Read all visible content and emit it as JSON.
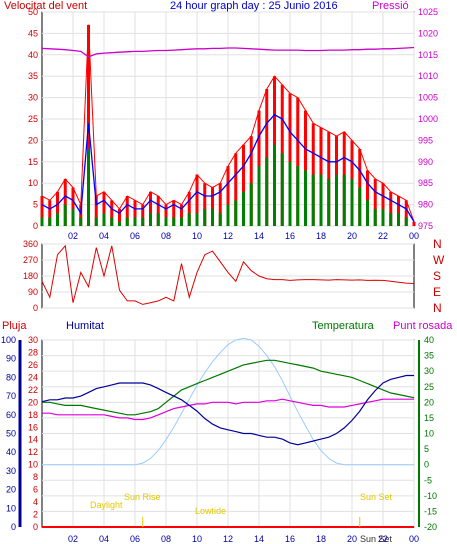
{
  "header": {
    "wind_label": "Velocitat del vent",
    "title": "24 hour graph day : 25 Junio 2016",
    "pressure_label": "Pressió"
  },
  "middle_labels": {
    "rain": "Pluja",
    "humidity": "Humitat",
    "temperature": "Temperatura",
    "dewpoint": "Punt rosada"
  },
  "compass": [
    "N",
    "W",
    "S",
    "E",
    "N"
  ],
  "sun_labels": {
    "twilight_dawn": "Daylight",
    "sunrise": "Sun Rise",
    "lowtide": "Lowtide",
    "sunset": "Sun Set",
    "sunset_extra": "Sun Set"
  },
  "colors": {
    "wind_gust": "#ff0000",
    "wind_avg": "#0000ff",
    "wind_low": "#008000",
    "pressure": "#cc00cc",
    "direction": "#dd0000",
    "humidity": "#000099",
    "temperature": "#007700",
    "dewpoint": "#dd00dd",
    "solar": "#99ccff",
    "rain": "#ff0000"
  },
  "chart_data": [
    {
      "type": "line",
      "name": "wind_pressure",
      "x_ticks": [
        "02",
        "04",
        "06",
        "08",
        "10",
        "12",
        "14",
        "16",
        "18",
        "20",
        "22",
        "00"
      ],
      "y_left_ticks": [
        0,
        5,
        10,
        15,
        20,
        25,
        30,
        35,
        40,
        45,
        50
      ],
      "y_right_ticks": [
        975,
        980,
        985,
        990,
        995,
        1000,
        1005,
        1010,
        1015,
        1020,
        1025
      ],
      "ylim_left": [
        0,
        50
      ],
      "ylim_right": [
        975,
        1025
      ],
      "x_hours": [
        0,
        0.5,
        1,
        1.5,
        2,
        2.5,
        3,
        3.5,
        4,
        4.5,
        5,
        5.5,
        6,
        6.5,
        7,
        7.5,
        8,
        8.5,
        9,
        9.5,
        10,
        10.5,
        11,
        11.5,
        12,
        12.5,
        13,
        13.5,
        14,
        14.5,
        15,
        15.5,
        16,
        16.5,
        17,
        17.5,
        18,
        18.5,
        19,
        19.5,
        20,
        20.5,
        21,
        21.5,
        22,
        22.5,
        23,
        23.5,
        24
      ],
      "series": [
        {
          "key": "gust",
          "values": [
            7,
            6,
            8,
            11,
            9,
            5,
            47,
            7,
            8,
            6,
            4,
            7,
            6,
            5,
            8,
            7,
            5,
            6,
            5,
            8,
            12,
            10,
            9,
            10,
            14,
            17,
            19,
            21,
            27,
            32,
            35,
            33,
            31,
            30,
            27,
            24,
            23,
            22,
            21,
            22,
            20,
            18,
            13,
            11,
            10,
            8,
            7,
            6,
            1
          ]
        },
        {
          "key": "avg",
          "values": [
            5,
            4,
            5,
            7,
            6,
            3,
            24,
            5,
            6,
            4,
            3,
            5,
            4,
            4,
            6,
            5,
            4,
            5,
            4,
            6,
            8,
            7,
            7,
            8,
            10,
            12,
            14,
            17,
            21,
            24,
            26,
            25,
            22,
            20,
            18,
            17,
            16,
            15,
            15,
            16,
            15,
            13,
            10,
            8,
            7,
            6,
            5,
            4,
            1
          ]
        },
        {
          "key": "low",
          "values": [
            2,
            2,
            3,
            5,
            4,
            2,
            18,
            2,
            3,
            2,
            1,
            2,
            2,
            2,
            3,
            3,
            2,
            2,
            2,
            3,
            3,
            4,
            4,
            3,
            5,
            6,
            8,
            10,
            14,
            16,
            19,
            17,
            15,
            14,
            13,
            12,
            12,
            11,
            12,
            12,
            11,
            9,
            6,
            4,
            4,
            3,
            3,
            2,
            0
          ]
        },
        {
          "key": "pressure",
          "values": [
            1016.5,
            1016.4,
            1016.3,
            1016.2,
            1016.0,
            1015.8,
            1014.5,
            1015.2,
            1015.4,
            1015.5,
            1015.6,
            1015.7,
            1015.8,
            1015.8,
            1015.9,
            1016.0,
            1016.0,
            1016.1,
            1016.2,
            1016.3,
            1016.4,
            1016.4,
            1016.5,
            1016.5,
            1016.6,
            1016.6,
            1016.5,
            1016.4,
            1016.3,
            1016.2,
            1016.1,
            1016.1,
            1016.1,
            1016.1,
            1016.0,
            1016.0,
            1016.0,
            1016.1,
            1016.1,
            1016.1,
            1016.2,
            1016.2,
            1016.3,
            1016.3,
            1016.4,
            1016.4,
            1016.5,
            1016.6,
            1016.7
          ]
        }
      ]
    },
    {
      "type": "scatter",
      "name": "wind_direction",
      "y_ticks": [
        0,
        90,
        180,
        270,
        360
      ],
      "ylim": [
        0,
        360
      ],
      "x_hours": [
        0,
        0.5,
        1,
        1.5,
        2,
        2.5,
        3,
        3.5,
        4,
        4.5,
        5,
        5.5,
        6,
        6.5,
        7,
        7.5,
        8,
        8.5,
        9,
        9.5,
        10,
        10.5,
        11,
        11.5,
        12,
        12.5,
        13,
        13.5,
        14,
        14.5,
        15,
        15.5,
        16,
        16.5,
        17,
        17.5,
        18,
        18.5,
        19,
        19.5,
        20,
        20.5,
        21,
        21.5,
        22,
        22.5,
        23,
        23.5,
        24
      ],
      "values": [
        150,
        60,
        300,
        350,
        30,
        200,
        120,
        340,
        180,
        350,
        100,
        40,
        40,
        20,
        30,
        40,
        60,
        40,
        250,
        60,
        200,
        300,
        320,
        260,
        200,
        150,
        260,
        210,
        180,
        165,
        160,
        160,
        155,
        158,
        160,
        160,
        158,
        157,
        160,
        158,
        157,
        158,
        155,
        156,
        155,
        150,
        145,
        140,
        138
      ]
    },
    {
      "type": "line",
      "name": "temp_humidity",
      "y_hum_ticks": [
        0,
        10,
        20,
        30,
        40,
        50,
        60,
        70,
        80,
        90,
        100
      ],
      "y_rain_ticks": [
        0,
        2,
        4,
        6,
        8,
        10,
        12,
        14,
        16,
        18,
        20,
        22,
        24,
        26,
        28,
        30
      ],
      "y_temp_ticks": [
        -20,
        -15,
        -10,
        -5,
        0,
        5,
        10,
        15,
        20,
        25,
        30,
        35,
        40
      ],
      "ylim_humidity": [
        0,
        100
      ],
      "ylim_temperature": [
        -20,
        40
      ],
      "x_hours": [
        0,
        0.5,
        1,
        1.5,
        2,
        2.5,
        3,
        3.5,
        4,
        4.5,
        5,
        5.5,
        6,
        6.5,
        7,
        7.5,
        8,
        8.5,
        9,
        9.5,
        10,
        10.5,
        11,
        11.5,
        12,
        12.5,
        13,
        13.5,
        14,
        14.5,
        15,
        15.5,
        16,
        16.5,
        17,
        17.5,
        18,
        18.5,
        19,
        19.5,
        20,
        20.5,
        21,
        21.5,
        22,
        22.5,
        23,
        23.5,
        24
      ],
      "series": [
        {
          "key": "humidity",
          "values": [
            67,
            68,
            68,
            69,
            69,
            70,
            72,
            74,
            75,
            76,
            77,
            77,
            77,
            77,
            76,
            74,
            72,
            70,
            68,
            65,
            62,
            58,
            55,
            53,
            52,
            51,
            50,
            50,
            49,
            48,
            48,
            47,
            45,
            44,
            45,
            46,
            47,
            48,
            50,
            53,
            57,
            62,
            68,
            73,
            77,
            79,
            80,
            81,
            81
          ]
        },
        {
          "key": "temperature",
          "values": [
            20,
            20,
            19.5,
            19,
            19,
            19,
            18.5,
            18,
            17.5,
            17,
            16.5,
            16,
            16,
            16.5,
            17,
            18,
            20,
            22,
            24,
            25,
            26,
            27,
            28,
            29,
            30,
            31,
            32,
            32.5,
            33,
            33.5,
            33.5,
            33,
            32.5,
            32,
            31.5,
            31,
            30,
            29.5,
            29,
            28.5,
            28,
            27,
            26,
            25,
            24,
            23,
            22.5,
            22,
            21.5
          ]
        },
        {
          "key": "dewpoint",
          "values": [
            16.5,
            16.5,
            16,
            16,
            16,
            16,
            16,
            16,
            16,
            15.5,
            15,
            15,
            14.5,
            14.5,
            15,
            16,
            17,
            18,
            18.5,
            19,
            19.5,
            19.5,
            20,
            20,
            20,
            19.5,
            20,
            20,
            20,
            20.5,
            20.5,
            21,
            20.5,
            20,
            19.5,
            19,
            19,
            18.5,
            18.5,
            18.5,
            19,
            19.5,
            20,
            20.5,
            21,
            21,
            21,
            21,
            21
          ]
        },
        {
          "key": "solar",
          "values": [
            0,
            0,
            0,
            0,
            0,
            0,
            0,
            0,
            0,
            0,
            0,
            0,
            0,
            0.5,
            2,
            4.5,
            8,
            12,
            16.5,
            21,
            25.5,
            29.5,
            33,
            36,
            38.5,
            40,
            40.5,
            40,
            38,
            35,
            31.5,
            27,
            22,
            17,
            12.5,
            8,
            4.5,
            2,
            0.5,
            0,
            0,
            0,
            0,
            0,
            0,
            0,
            0,
            0,
            0
          ]
        },
        {
          "key": "rain",
          "values": [
            0,
            0,
            0,
            0,
            0,
            0,
            0,
            0,
            0,
            0,
            0,
            0,
            0,
            0,
            0,
            0,
            0,
            0,
            0,
            0,
            0,
            0,
            0,
            0,
            0,
            0,
            0,
            0,
            0,
            0,
            0,
            0,
            0,
            0,
            0,
            0,
            0,
            0,
            0,
            0,
            0,
            0,
            0,
            0,
            0,
            0,
            0,
            0,
            0
          ]
        }
      ],
      "x_ticks": [
        "02",
        "04",
        "06",
        "08",
        "10",
        "12",
        "14",
        "16",
        "18",
        "20",
        "22",
        "00"
      ]
    }
  ]
}
